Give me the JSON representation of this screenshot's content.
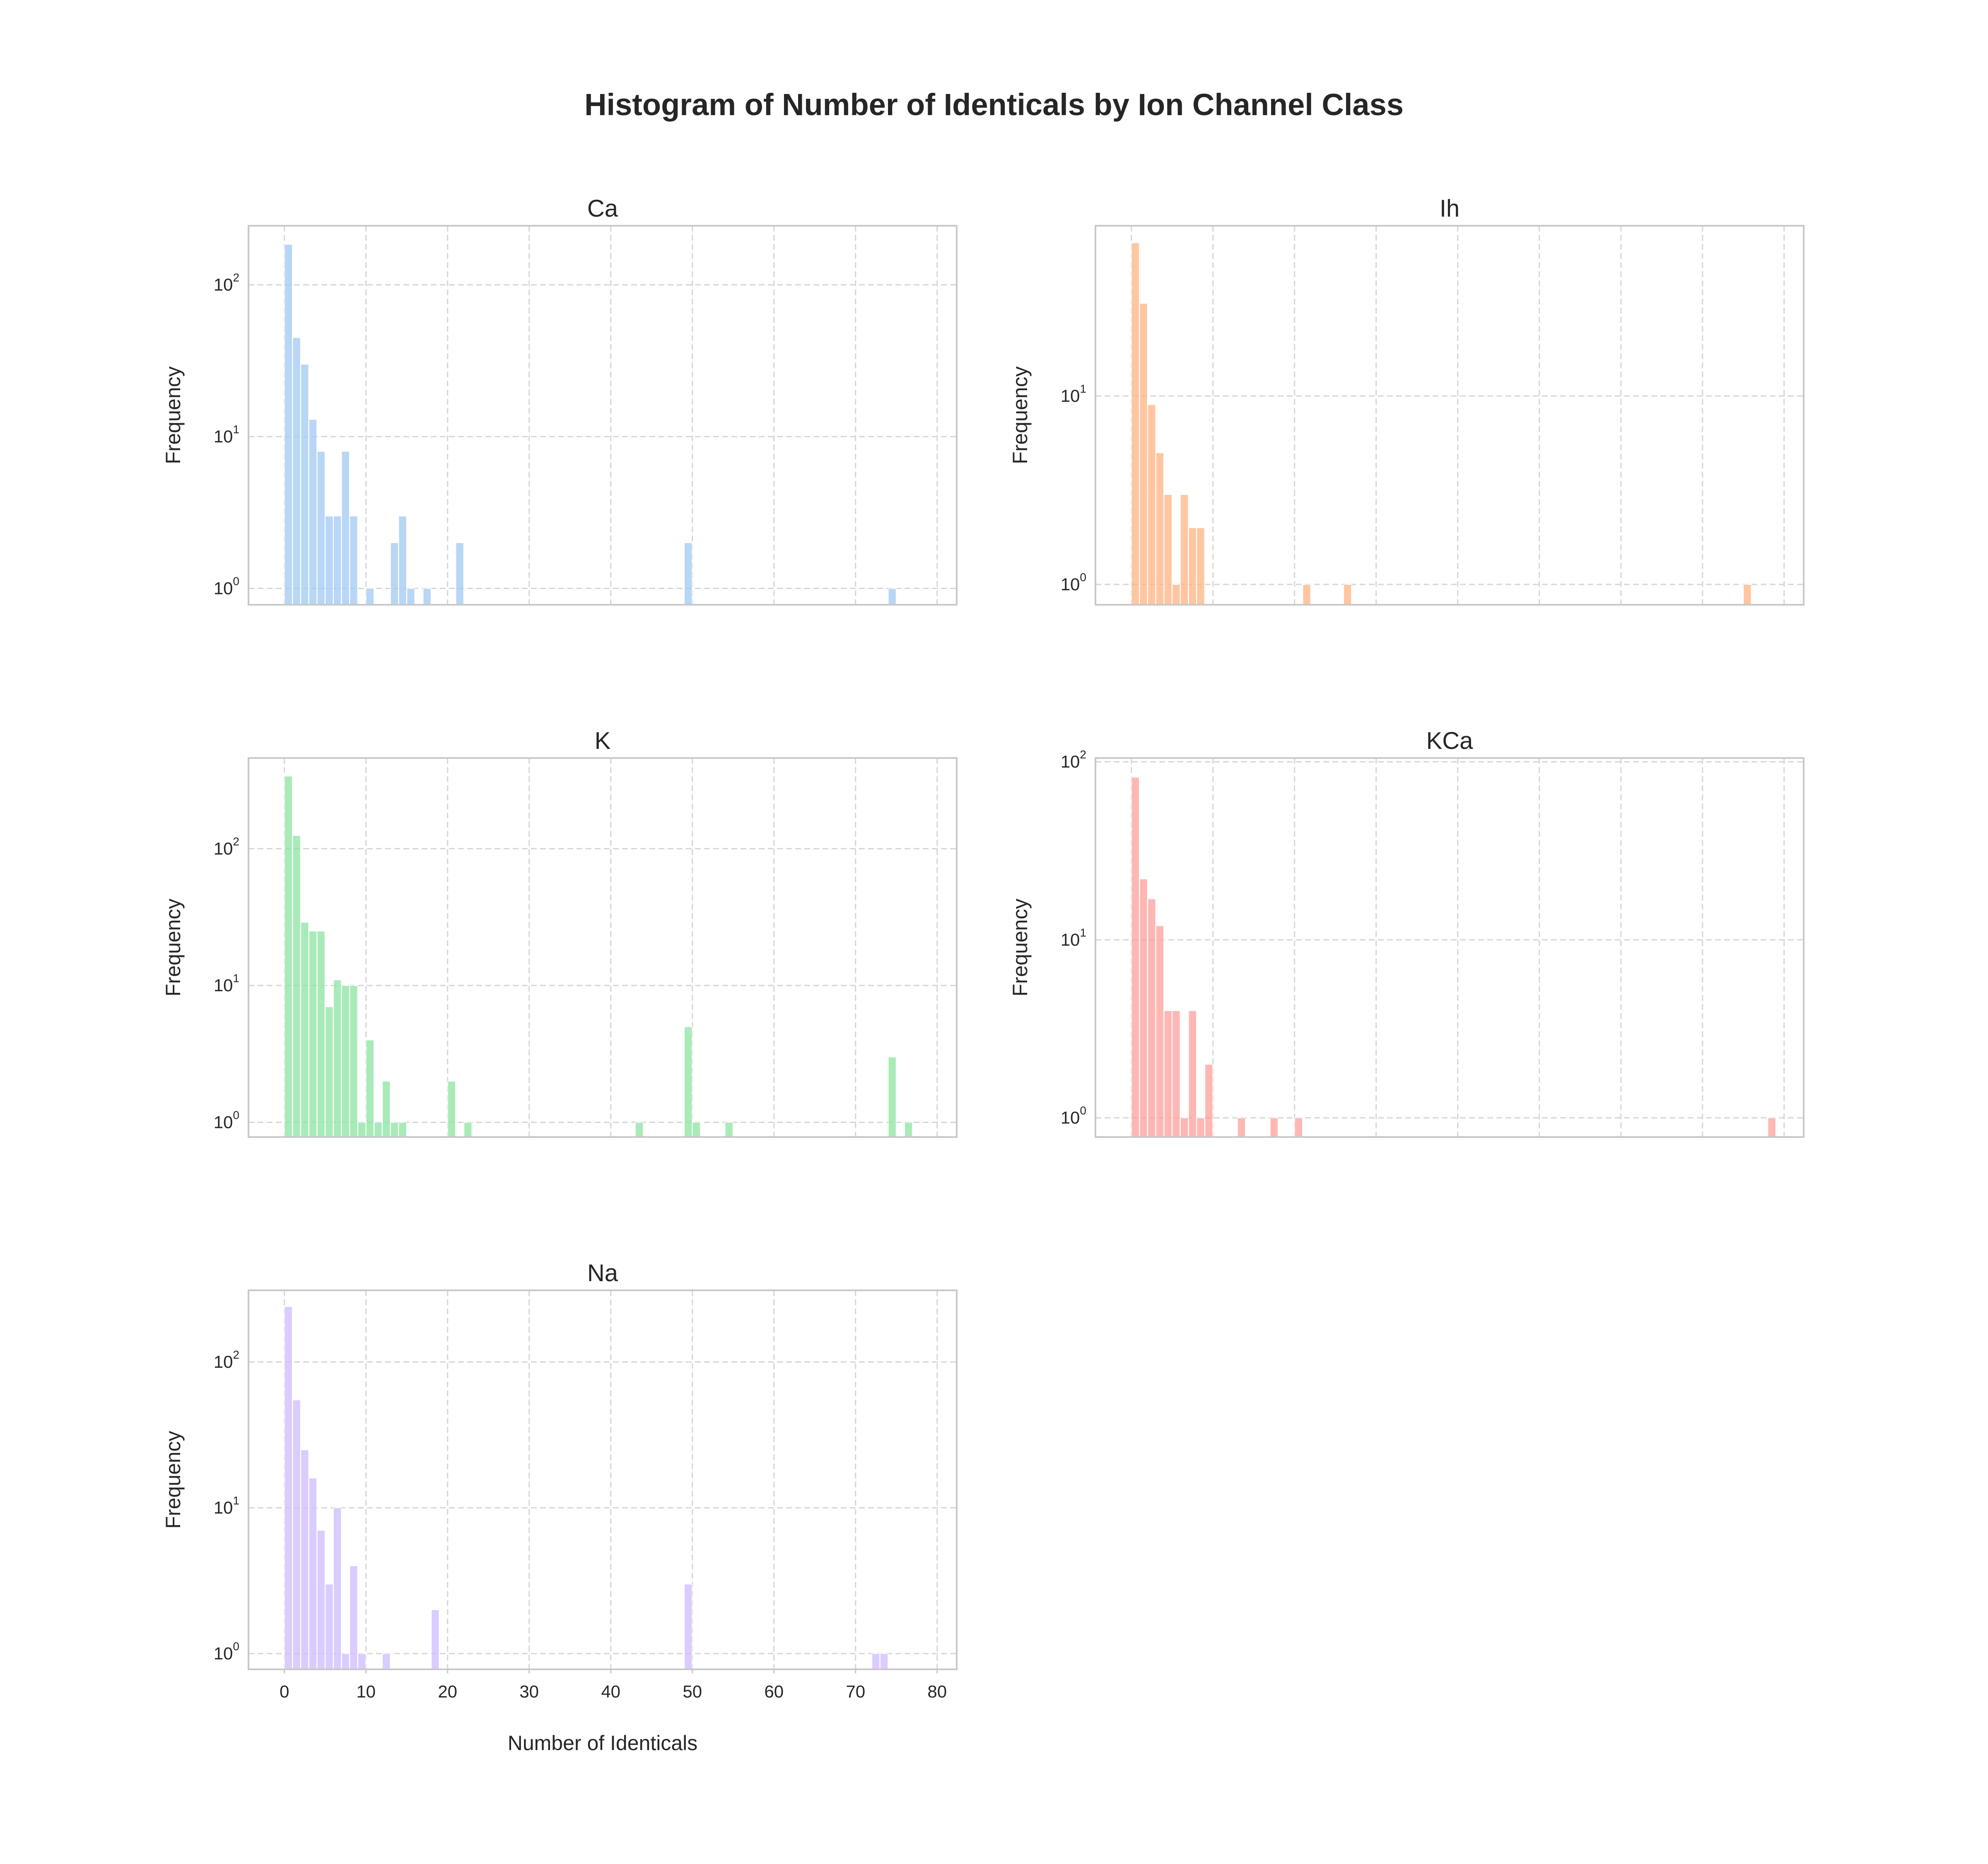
{
  "title": "Histogram of Number of Identicals by Ion Channel Class",
  "chart_data": [
    {
      "type": "bar",
      "title": "Ca",
      "ylabel": "Frequency",
      "xlabel": "",
      "yscale": "log",
      "color": "#a1c9f4",
      "x_range": [
        -4.4,
        82.4
      ],
      "y_range": [
        0.78,
        245
      ],
      "show_x_tick_labels": false,
      "bin_width": 0.98,
      "x": [
        0,
        1,
        2,
        3,
        4,
        5,
        6,
        7,
        8,
        10,
        13,
        14,
        15,
        17,
        21,
        49,
        74
      ],
      "values": [
        185,
        45,
        30,
        13,
        8,
        3,
        3,
        8,
        3,
        1,
        2,
        3,
        1,
        1,
        2,
        2,
        1
      ]
    },
    {
      "type": "bar",
      "title": "Ih",
      "ylabel": "Frequency",
      "xlabel": "",
      "yscale": "log",
      "color": "#ffb482",
      "x_range": [
        -4.4,
        82.4
      ],
      "y_range": [
        0.78,
        80
      ],
      "show_x_tick_labels": false,
      "bin_width": 0.98,
      "x": [
        0,
        1,
        2,
        3,
        4,
        5,
        6,
        7,
        8,
        21,
        26,
        75
      ],
      "values": [
        65,
        31,
        9,
        5,
        3,
        1,
        3,
        2,
        2,
        1,
        1,
        1
      ]
    },
    {
      "type": "bar",
      "title": "K",
      "ylabel": "Frequency",
      "xlabel": "",
      "yscale": "log",
      "color": "#8de5a1",
      "x_range": [
        -4.4,
        82.4
      ],
      "y_range": [
        0.78,
        460
      ],
      "show_x_tick_labels": false,
      "bin_width": 0.98,
      "x": [
        0,
        1,
        2,
        3,
        4,
        5,
        6,
        7,
        8,
        9,
        10,
        11,
        12,
        13,
        14,
        20,
        22,
        43,
        49,
        50,
        54,
        74,
        76
      ],
      "values": [
        340,
        125,
        29,
        25,
        25,
        7,
        11,
        10,
        10,
        1,
        4,
        1,
        2,
        1,
        1,
        2,
        1,
        1,
        5,
        1,
        1,
        3,
        1
      ],
      "color_name": "green"
    },
    {
      "type": "bar",
      "title": "KCa",
      "ylabel": "Frequency",
      "xlabel": "",
      "yscale": "log",
      "color": "#ff9f9b",
      "x_range": [
        -4.4,
        82.4
      ],
      "y_range": [
        0.78,
        105
      ],
      "show_x_tick_labels": false,
      "bin_width": 0.98,
      "x": [
        0,
        1,
        2,
        3,
        4,
        5,
        6,
        7,
        8,
        9,
        13,
        17,
        20,
        78
      ],
      "values": [
        82,
        22,
        17,
        12,
        4,
        4,
        1,
        4,
        1,
        2,
        1,
        1,
        1,
        1
      ]
    },
    {
      "type": "bar",
      "title": "Na",
      "ylabel": "Frequency",
      "xlabel": "Number of Identicals",
      "yscale": "log",
      "color": "#d0bbff",
      "x_range": [
        -4.4,
        82.4
      ],
      "y_range": [
        0.78,
        310
      ],
      "show_x_tick_labels": true,
      "x_ticks": [
        "0",
        "10",
        "20",
        "30",
        "40",
        "50",
        "60",
        "70",
        "80"
      ],
      "bin_width": 0.98,
      "x": [
        0,
        1,
        2,
        3,
        4,
        5,
        6,
        7,
        8,
        9,
        12,
        18,
        49,
        72,
        73
      ],
      "values": [
        240,
        55,
        25,
        16,
        7,
        3,
        10,
        1,
        4,
        1,
        1,
        2,
        3,
        1,
        1
      ]
    }
  ]
}
